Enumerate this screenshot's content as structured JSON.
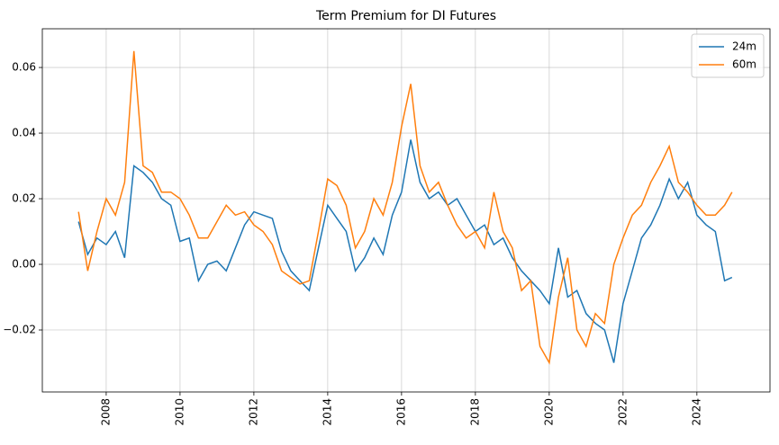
{
  "chart_data": {
    "type": "line",
    "title": "Term Premium for DI Futures",
    "x": [
      2007.25,
      2007.5,
      2007.75,
      2008,
      2008.25,
      2008.5,
      2008.75,
      2009,
      2009.25,
      2009.5,
      2009.75,
      2010,
      2010.25,
      2010.5,
      2010.75,
      2011,
      2011.25,
      2011.5,
      2011.75,
      2012,
      2012.25,
      2012.5,
      2012.75,
      2013,
      2013.25,
      2013.5,
      2013.75,
      2014,
      2014.25,
      2014.5,
      2014.75,
      2015,
      2015.25,
      2015.5,
      2015.75,
      2016,
      2016.25,
      2016.5,
      2016.75,
      2017,
      2017.25,
      2017.5,
      2017.75,
      2018,
      2018.25,
      2018.5,
      2018.75,
      2019,
      2019.25,
      2019.5,
      2019.75,
      2020,
      2020.25,
      2020.5,
      2020.75,
      2021,
      2021.25,
      2021.5,
      2021.75,
      2022,
      2022.25,
      2022.5,
      2022.75,
      2023,
      2023.25,
      2023.5,
      2023.75,
      2024,
      2024.25,
      2024.5,
      2024.75,
      2024.95
    ],
    "series": [
      {
        "name": "24m",
        "color": "#1f77b4",
        "values": [
          0.013,
          0.003,
          0.008,
          0.006,
          0.01,
          0.002,
          0.03,
          0.028,
          0.025,
          0.02,
          0.018,
          0.007,
          0.008,
          -0.005,
          0.0,
          0.001,
          -0.002,
          0.005,
          0.012,
          0.016,
          0.015,
          0.014,
          0.004,
          -0.002,
          -0.005,
          -0.008,
          0.005,
          0.018,
          0.014,
          0.01,
          -0.002,
          0.002,
          0.008,
          0.003,
          0.015,
          0.022,
          0.038,
          0.025,
          0.02,
          0.022,
          0.018,
          0.02,
          0.015,
          0.01,
          0.012,
          0.006,
          0.008,
          0.002,
          -0.002,
          -0.005,
          -0.008,
          -0.012,
          0.005,
          -0.01,
          -0.008,
          -0.015,
          -0.018,
          -0.02,
          -0.03,
          -0.012,
          -0.002,
          0.008,
          0.012,
          0.018,
          0.026,
          0.02,
          0.025,
          0.015,
          0.012,
          0.01,
          -0.005,
          -0.004
        ]
      },
      {
        "name": "60m",
        "color": "#ff7f0e",
        "values": [
          0.016,
          -0.002,
          0.01,
          0.02,
          0.015,
          0.025,
          0.065,
          0.03,
          0.028,
          0.022,
          0.022,
          0.02,
          0.015,
          0.008,
          0.008,
          0.013,
          0.018,
          0.015,
          0.016,
          0.012,
          0.01,
          0.006,
          -0.002,
          -0.004,
          -0.006,
          -0.005,
          0.01,
          0.026,
          0.024,
          0.018,
          0.005,
          0.01,
          0.02,
          0.015,
          0.025,
          0.042,
          0.055,
          0.03,
          0.022,
          0.025,
          0.018,
          0.012,
          0.008,
          0.01,
          0.005,
          0.022,
          0.01,
          0.005,
          -0.008,
          -0.005,
          -0.025,
          -0.03,
          -0.01,
          0.002,
          -0.02,
          -0.025,
          -0.015,
          -0.018,
          0.0,
          0.008,
          0.015,
          0.018,
          0.025,
          0.03,
          0.036,
          0.025,
          0.022,
          0.018,
          0.015,
          0.015,
          0.018,
          0.022
        ]
      }
    ],
    "xlim": [
      2006.27,
      2025.98
    ],
    "xticks": [
      2008,
      2010,
      2012,
      2014,
      2016,
      2018,
      2020,
      2022,
      2024
    ],
    "ylim": [
      -0.0389,
      0.0718
    ],
    "yticks": [
      {
        "value": -0.02,
        "label": "−0.02"
      },
      {
        "value": 0,
        "label": "0.00"
      },
      {
        "value": 0.02,
        "label": "0.02"
      },
      {
        "value": 0.04,
        "label": "0.04"
      },
      {
        "value": 0.06,
        "label": "0.06"
      }
    ],
    "grid": true,
    "legend": "upper right"
  }
}
